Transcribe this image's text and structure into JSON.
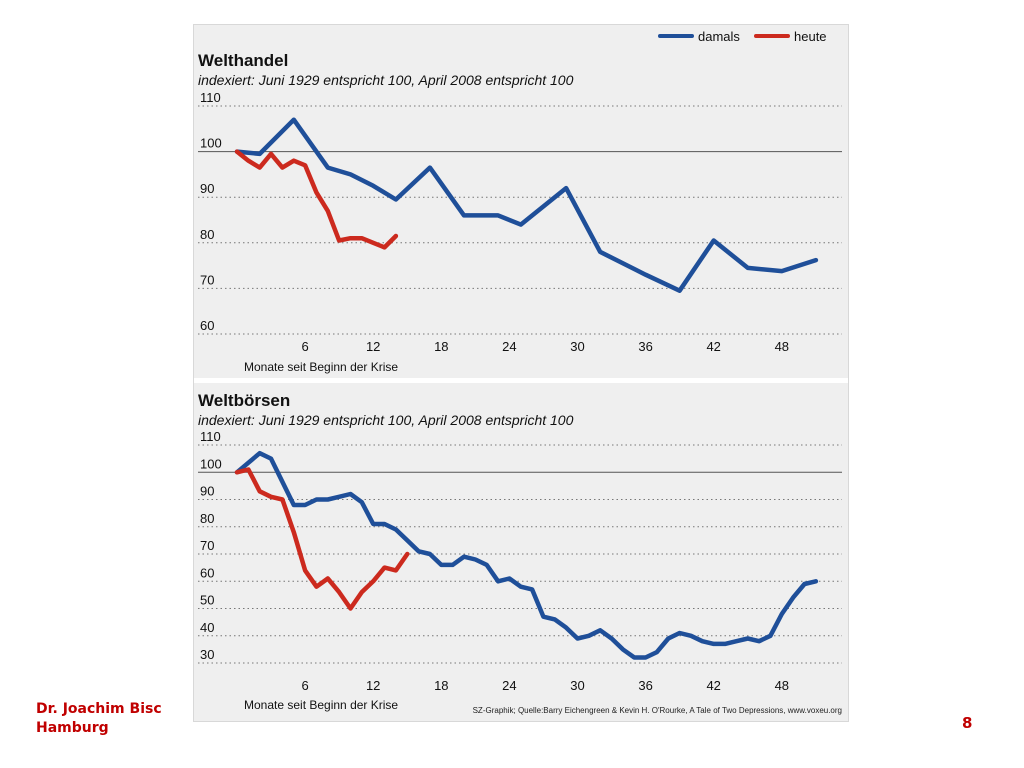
{
  "colors": {
    "damals": "#1f4f99",
    "heute": "#cc2a1e"
  },
  "legend": [
    {
      "label": "damals",
      "color": "#1f4f99"
    },
    {
      "label": "heute",
      "color": "#cc2a1e"
    }
  ],
  "source": "SZ-Graphik; Quelle:Barry Eichengreen & Kevin H. O'Rourke, A Tale of Two Depressions, www.voxeu.org",
  "footer": {
    "author": "Dr. Joachim Bisc",
    "city": "Hamburg",
    "page": "8"
  },
  "chart_data": [
    {
      "type": "line",
      "title": "Welthandel",
      "subtitle": "indexiert: Juni 1929 entspricht 100, April 2008 entspricht 100",
      "xlabel": "Monate seit Beginn der Krise",
      "xlim": [
        0,
        53
      ],
      "ylim": [
        60,
        110
      ],
      "yticks": [
        60,
        70,
        80,
        90,
        100,
        110
      ],
      "xticks": [
        6,
        12,
        18,
        24,
        30,
        36,
        42,
        48
      ],
      "legend": "top-right",
      "series": [
        {
          "name": "damals",
          "x": [
            0,
            2,
            5,
            8,
            10,
            12,
            14,
            17,
            20,
            23,
            25,
            29,
            32,
            36,
            39,
            42,
            45,
            48,
            51
          ],
          "y": [
            100,
            99.5,
            107,
            96.5,
            95,
            92.5,
            89.5,
            96.5,
            86,
            86,
            84,
            92,
            78,
            73,
            69.5,
            80.5,
            74.5,
            73.8,
            76.2
          ]
        },
        {
          "name": "heute",
          "x": [
            0,
            1,
            2,
            3,
            4,
            5,
            6,
            7,
            8,
            9,
            10,
            11,
            12,
            13,
            14
          ],
          "y": [
            100,
            98,
            96.5,
            99.5,
            96.5,
            98,
            97,
            91,
            87,
            80.5,
            81,
            81,
            80,
            79,
            81.5
          ]
        }
      ]
    },
    {
      "type": "line",
      "title": "Weltbörsen",
      "subtitle": "indexiert: Juni 1929 entspricht 100, April 2008 entspricht 100",
      "xlabel": "Monate seit Beginn der Krise",
      "xlim": [
        0,
        53
      ],
      "ylim": [
        30,
        110
      ],
      "yticks": [
        30,
        40,
        50,
        60,
        70,
        80,
        90,
        100,
        110
      ],
      "xticks": [
        6,
        12,
        18,
        24,
        30,
        36,
        42,
        48
      ],
      "series": [
        {
          "name": "damals",
          "x": [
            0,
            2,
            3,
            5,
            6,
            7,
            8,
            9,
            10,
            11,
            12,
            13,
            14,
            15,
            16,
            17,
            18,
            19,
            20,
            21,
            22,
            23,
            24,
            25,
            26,
            27,
            28,
            29,
            30,
            31,
            32,
            33,
            34,
            35,
            36,
            37,
            38,
            39,
            40,
            41,
            42,
            43,
            44,
            45,
            46,
            47,
            48,
            49,
            50,
            51
          ],
          "y": [
            100,
            107,
            105,
            88,
            88,
            90,
            90,
            91,
            92,
            89,
            81,
            81,
            79,
            75,
            71,
            70,
            66,
            66,
            69,
            68,
            66,
            60,
            61,
            58,
            57,
            47,
            46,
            43,
            39,
            40,
            42,
            39,
            35,
            32,
            32,
            34,
            39,
            41,
            40,
            38,
            37,
            37,
            38,
            39,
            38,
            40,
            48,
            54,
            59,
            60
          ]
        },
        {
          "name": "heute",
          "x": [
            0,
            1,
            2,
            3,
            4,
            5,
            6,
            7,
            8,
            9,
            10,
            11,
            12,
            13,
            14,
            15
          ],
          "y": [
            100,
            101,
            93,
            91,
            90,
            78,
            64,
            58,
            61,
            56,
            50,
            56,
            60,
            65,
            64,
            70
          ]
        }
      ]
    }
  ]
}
